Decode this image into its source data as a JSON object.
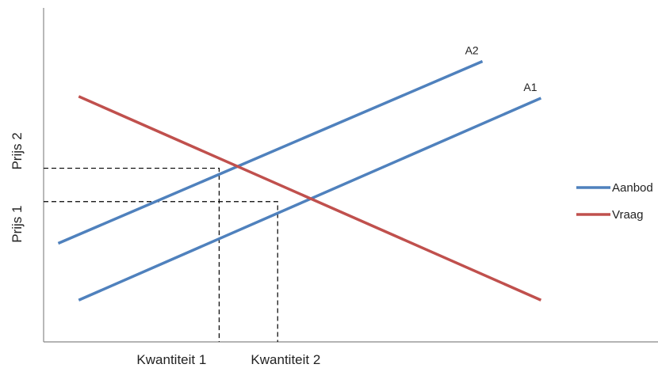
{
  "chart_data": {
    "type": "line",
    "xlabel": "",
    "ylabel": "",
    "x_ticks": [
      "Kwantiteit 1",
      "Kwantiteit 2"
    ],
    "y_ticks": [
      "Prijs 1",
      "Prijs 2"
    ],
    "series": [
      {
        "name": "Aanbod",
        "line_label": "A2",
        "color": "#4f81bd",
        "points": [
          [
            0.25,
            2.95
          ],
          [
            7.5,
            8.4
          ]
        ]
      },
      {
        "name": "Aanbod",
        "line_label": "A1",
        "color": "#4f81bd",
        "points": [
          [
            0.6,
            1.25
          ],
          [
            8.5,
            7.3
          ]
        ]
      },
      {
        "name": "Vraag",
        "color": "#c0504d",
        "points": [
          [
            0.6,
            7.35
          ],
          [
            8.5,
            1.25
          ]
        ]
      }
    ],
    "reference_lines": [
      {
        "from": [
          0,
          5.2
        ],
        "corner": [
          3.0,
          5.2
        ],
        "to": [
          3.0,
          0
        ]
      },
      {
        "from": [
          0,
          4.2
        ],
        "corner": [
          4.0,
          4.2
        ],
        "to": [
          4.0,
          0
        ]
      }
    ],
    "xlim": [
      0,
      10.5
    ],
    "ylim": [
      0,
      10
    ],
    "legend": {
      "position": "right",
      "entries": [
        "Aanbod",
        "Vraag"
      ]
    },
    "grid": false
  }
}
